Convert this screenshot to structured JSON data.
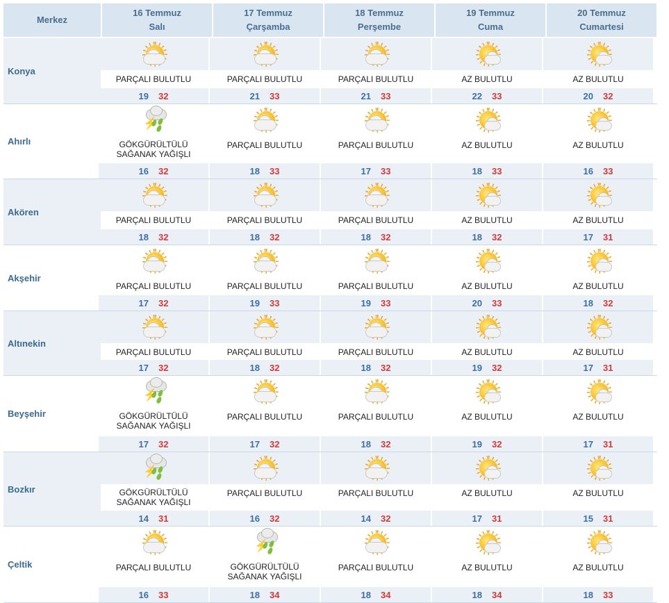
{
  "header": {
    "city_col": "Merkez",
    "days": [
      {
        "date": "16 Temmuz",
        "weekday": "Salı"
      },
      {
        "date": "17 Temmuz",
        "weekday": "Çarşamba"
      },
      {
        "date": "18 Temmuz",
        "weekday": "Perşembe"
      },
      {
        "date": "19 Temmuz",
        "weekday": "Cuma"
      },
      {
        "date": "20 Temmuz",
        "weekday": "Cumartesi"
      }
    ]
  },
  "colors": {
    "header_bg": "#d9e5f1",
    "band_bg": "#eaf0f6",
    "city_text": "#3c6a91",
    "low_temp": "#3c6fa8",
    "high_temp": "#d23a3a"
  },
  "rows": [
    {
      "city": "Konya",
      "days": [
        {
          "icon": "partly-cloudy-icon",
          "desc": "PARÇALI BULUTLU",
          "low": "19",
          "high": "32"
        },
        {
          "icon": "partly-cloudy-icon",
          "desc": "PARÇALI BULUTLU",
          "low": "21",
          "high": "33"
        },
        {
          "icon": "partly-cloudy-icon",
          "desc": "PARÇALI BULUTLU",
          "low": "21",
          "high": "33"
        },
        {
          "icon": "mostly-sunny-icon",
          "desc": "AZ BULUTLU",
          "low": "22",
          "high": "33"
        },
        {
          "icon": "mostly-sunny-icon",
          "desc": "AZ BULUTLU",
          "low": "20",
          "high": "32"
        }
      ]
    },
    {
      "city": "Ahırlı",
      "days": [
        {
          "icon": "thunderstorm-icon",
          "desc": "GÖKGÜRÜLTÜLÜ\nSAĞANAK YAĞIŞLI",
          "low": "16",
          "high": "32"
        },
        {
          "icon": "partly-cloudy-icon",
          "desc": "PARÇALI BULUTLU",
          "low": "18",
          "high": "33"
        },
        {
          "icon": "partly-cloudy-icon",
          "desc": "PARÇALI BULUTLU",
          "low": "17",
          "high": "33"
        },
        {
          "icon": "mostly-sunny-icon",
          "desc": "AZ BULUTLU",
          "low": "18",
          "high": "33"
        },
        {
          "icon": "mostly-sunny-icon",
          "desc": "AZ BULUTLU",
          "low": "16",
          "high": "33"
        }
      ]
    },
    {
      "city": "Akören",
      "days": [
        {
          "icon": "partly-cloudy-icon",
          "desc": "PARÇALI BULUTLU",
          "low": "18",
          "high": "32"
        },
        {
          "icon": "partly-cloudy-icon",
          "desc": "PARÇALI BULUTLU",
          "low": "18",
          "high": "32"
        },
        {
          "icon": "partly-cloudy-icon",
          "desc": "PARÇALI BULUTLU",
          "low": "18",
          "high": "32"
        },
        {
          "icon": "mostly-sunny-icon",
          "desc": "AZ BULUTLU",
          "low": "18",
          "high": "32"
        },
        {
          "icon": "mostly-sunny-icon",
          "desc": "AZ BULUTLU",
          "low": "17",
          "high": "31"
        }
      ]
    },
    {
      "city": "Akşehir",
      "days": [
        {
          "icon": "partly-cloudy-icon",
          "desc": "PARÇALI BULUTLU",
          "low": "17",
          "high": "32"
        },
        {
          "icon": "partly-cloudy-icon",
          "desc": "PARÇALI BULUTLU",
          "low": "19",
          "high": "33"
        },
        {
          "icon": "partly-cloudy-icon",
          "desc": "PARÇALI BULUTLU",
          "low": "19",
          "high": "33"
        },
        {
          "icon": "mostly-sunny-icon",
          "desc": "AZ BULUTLU",
          "low": "20",
          "high": "33"
        },
        {
          "icon": "mostly-sunny-icon",
          "desc": "AZ BULUTLU",
          "low": "18",
          "high": "32"
        }
      ]
    },
    {
      "city": "Altınekin",
      "days": [
        {
          "icon": "partly-cloudy-icon",
          "desc": "PARÇALI BULUTLU",
          "low": "17",
          "high": "32"
        },
        {
          "icon": "partly-cloudy-icon",
          "desc": "PARÇALI BULUTLU",
          "low": "18",
          "high": "32"
        },
        {
          "icon": "partly-cloudy-icon",
          "desc": "PARÇALI BULUTLU",
          "low": "18",
          "high": "32"
        },
        {
          "icon": "mostly-sunny-icon",
          "desc": "AZ BULUTLU",
          "low": "19",
          "high": "32"
        },
        {
          "icon": "mostly-sunny-icon",
          "desc": "AZ BULUTLU",
          "low": "17",
          "high": "31"
        }
      ]
    },
    {
      "city": "Beyşehir",
      "days": [
        {
          "icon": "thunderstorm-icon",
          "desc": "GÖKGÜRÜLTÜLÜ\nSAĞANAK YAĞIŞLI",
          "low": "17",
          "high": "32"
        },
        {
          "icon": "partly-cloudy-icon",
          "desc": "PARÇALI BULUTLU",
          "low": "17",
          "high": "32"
        },
        {
          "icon": "partly-cloudy-icon",
          "desc": "PARÇALI BULUTLU",
          "low": "18",
          "high": "32"
        },
        {
          "icon": "mostly-sunny-icon",
          "desc": "AZ BULUTLU",
          "low": "19",
          "high": "32"
        },
        {
          "icon": "mostly-sunny-icon",
          "desc": "AZ BULUTLU",
          "low": "17",
          "high": "31"
        }
      ]
    },
    {
      "city": "Bozkır",
      "days": [
        {
          "icon": "thunderstorm-icon",
          "desc": "GÖKGÜRÜLTÜLÜ\nSAĞANAK YAĞIŞLI",
          "low": "14",
          "high": "31"
        },
        {
          "icon": "partly-cloudy-icon",
          "desc": "PARÇALI BULUTLU",
          "low": "16",
          "high": "32"
        },
        {
          "icon": "partly-cloudy-icon",
          "desc": "PARÇALI BULUTLU",
          "low": "14",
          "high": "32"
        },
        {
          "icon": "mostly-sunny-icon",
          "desc": "AZ BULUTLU",
          "low": "17",
          "high": "31"
        },
        {
          "icon": "mostly-sunny-icon",
          "desc": "AZ BULUTLU",
          "low": "15",
          "high": "31"
        }
      ]
    },
    {
      "city": "Çeltik",
      "days": [
        {
          "icon": "partly-cloudy-icon",
          "desc": "PARÇALI BULUTLU",
          "low": "16",
          "high": "33"
        },
        {
          "icon": "thunderstorm-icon",
          "desc": "GÖKGÜRÜLTÜLÜ\nSAĞANAK YAĞIŞLI",
          "low": "18",
          "high": "34"
        },
        {
          "icon": "partly-cloudy-icon",
          "desc": "PARÇALI BULUTLU",
          "low": "18",
          "high": "34"
        },
        {
          "icon": "mostly-sunny-icon",
          "desc": "AZ BULUTLU",
          "low": "18",
          "high": "34"
        },
        {
          "icon": "mostly-sunny-icon",
          "desc": "AZ BULUTLU",
          "low": "18",
          "high": "33"
        }
      ]
    }
  ]
}
